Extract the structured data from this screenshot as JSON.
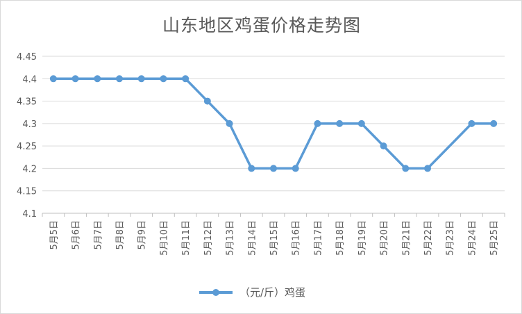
{
  "chart_data": {
    "type": "line",
    "title": "山东地区鸡蛋价格走势图",
    "xlabel": "",
    "ylabel": "",
    "categories": [
      "5月5日",
      "5月6日",
      "5月7日",
      "5月8日",
      "5月9日",
      "5月10日",
      "5月11日",
      "5月12日",
      "5月13日",
      "5月14日",
      "5月15日",
      "5月16日",
      "5月17日",
      "5月18日",
      "5月19日",
      "5月20日",
      "5月21日",
      "5月22日",
      "5月23日",
      "5月24日",
      "5月25日"
    ],
    "series": [
      {
        "name": "（元/斤）鸡蛋",
        "color": "#5b9bd5",
        "values": [
          4.4,
          4.4,
          4.4,
          4.4,
          4.4,
          4.4,
          4.4,
          4.35,
          4.3,
          4.2,
          4.2,
          4.2,
          4.3,
          4.3,
          4.3,
          4.25,
          4.2,
          4.2,
          null,
          4.3,
          4.3
        ]
      }
    ],
    "ylim": [
      4.1,
      4.45
    ],
    "yticks": [
      "4.1",
      "4.15",
      "4.2",
      "4.25",
      "4.3",
      "4.35",
      "4.4",
      "4.45"
    ],
    "grid": true,
    "legend": "bottom"
  }
}
